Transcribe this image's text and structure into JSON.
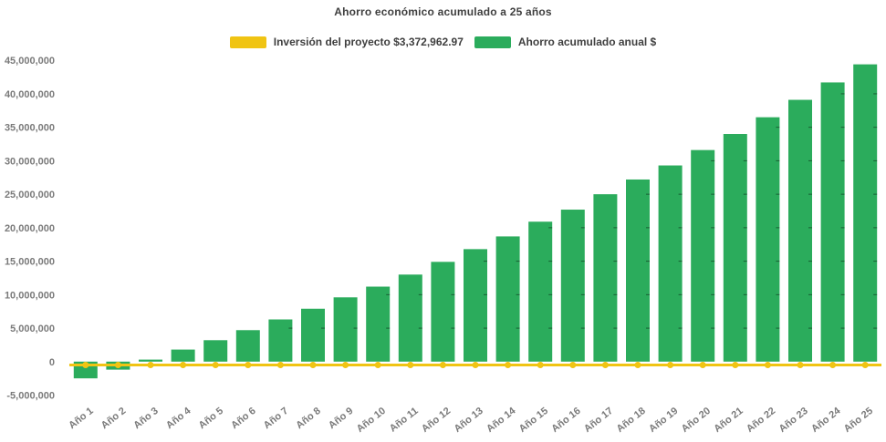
{
  "chart_data": {
    "type": "bar",
    "title": "Ahorro económico acumulado a 25 años",
    "xlabel": "",
    "ylabel": "",
    "categories": [
      "Año 1",
      "Año 2",
      "Año 3",
      "Año 4",
      "Año 5",
      "Año 6",
      "Año 7",
      "Año 8",
      "Año 9",
      "Año 10",
      "Año 11",
      "Año 12",
      "Año 13",
      "Año 14",
      "Año 15",
      "Año 16",
      "Año 17",
      "Año 18",
      "Año 19",
      "Año 20",
      "Año 21",
      "Año 22",
      "Año 23",
      "Año 24",
      "Año 25"
    ],
    "series": [
      {
        "name": "Ahorro acumulado anual $",
        "type": "bar",
        "color": "#2bac5c",
        "values": [
          -2500000,
          -1200000,
          300000,
          1800000,
          3200000,
          4700000,
          6300000,
          7900000,
          9600000,
          11200000,
          13000000,
          14900000,
          16800000,
          18700000,
          20900000,
          22700000,
          25000000,
          27200000,
          29300000,
          31600000,
          34000000,
          36500000,
          39100000,
          41700000,
          44400000
        ]
      },
      {
        "name": "Inversión del proyecto $3,372,962.97",
        "type": "line",
        "color": "#f0c413",
        "marker": "circle",
        "constant_value": -500000,
        "values": [
          -500000,
          -500000,
          -500000,
          -500000,
          -500000,
          -500000,
          -500000,
          -500000,
          -500000,
          -500000,
          -500000,
          -500000,
          -500000,
          -500000,
          -500000,
          -500000,
          -500000,
          -500000,
          -500000,
          -500000,
          -500000,
          -500000,
          -500000,
          -500000,
          -500000
        ]
      }
    ],
    "ylim": [
      -5000000,
      45000000
    ],
    "ytick_step": 5000000,
    "ytick_labels": [
      "-5,000,000",
      "0",
      "5,000,000",
      "10,000,000",
      "15,000,000",
      "20,000,000",
      "25,000,000",
      "30,000,000",
      "35,000,000",
      "40,000,000",
      "45,000,000"
    ],
    "grid": false,
    "legend_position": "top-center"
  },
  "colors": {
    "background": "#ffffff",
    "bar_green": "#2bac5c",
    "line_yellow": "#f0c413",
    "title_text": "#3f3f3f",
    "axis_text": "#7a7a7a",
    "bar_notch": "rgba(0,0,0,0.45)"
  }
}
